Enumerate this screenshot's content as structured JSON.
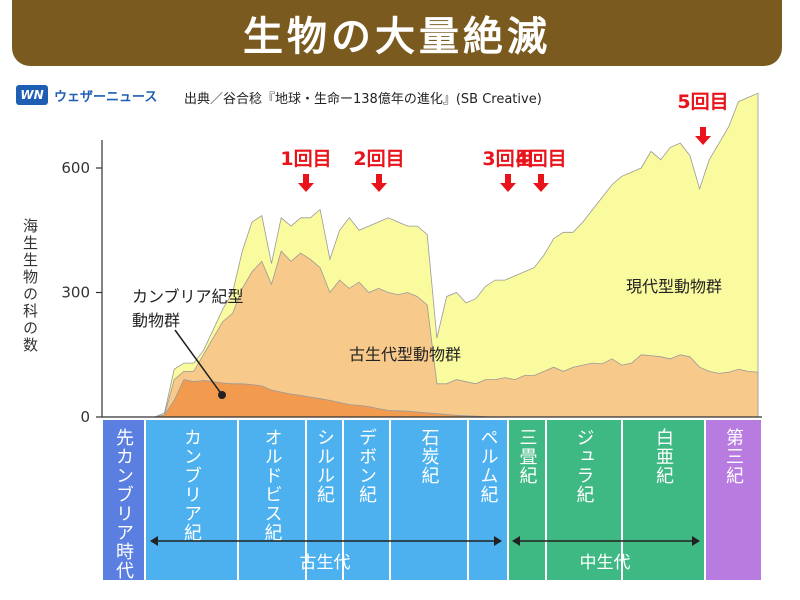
{
  "title": "生物の大量絶滅",
  "brand": {
    "mark": "WN",
    "name": "ウェザーニュース"
  },
  "source": "出典／谷合稔『地球・生命ー138億年の進化』(SB Creative)",
  "chart_data": {
    "type": "area",
    "ylabel": "海生生物の科の数",
    "ylim": [
      0,
      800
    ],
    "yticks": [
      "0",
      "300",
      "600"
    ],
    "ytick_values": [
      0,
      300,
      600
    ],
    "x": [
      0,
      1,
      2,
      3,
      4,
      5,
      6,
      7,
      8,
      9,
      10,
      11,
      12,
      13,
      14,
      15,
      16,
      17,
      18,
      19,
      20,
      21,
      22,
      23,
      24,
      25,
      26,
      27,
      28,
      29,
      30,
      31,
      32,
      33,
      34,
      35,
      36,
      37,
      38,
      39,
      40,
      41,
      42,
      43,
      44,
      45,
      46,
      47,
      48,
      49,
      50,
      51,
      52,
      53,
      54,
      55,
      56,
      57,
      58,
      59,
      60,
      61,
      62,
      63
    ],
    "series": [
      {
        "name": "カンブリア紀型動物群",
        "values": [
          0,
          0,
          5,
          40,
          90,
          85,
          88,
          85,
          82,
          80,
          80,
          78,
          75,
          65,
          60,
          55,
          52,
          48,
          44,
          40,
          35,
          30,
          28,
          25,
          20,
          16,
          15,
          14,
          12,
          10,
          8,
          6,
          4,
          3,
          2,
          1,
          0,
          0,
          0,
          0,
          0,
          0,
          0,
          0,
          0,
          0,
          0,
          0,
          0,
          0,
          0,
          0,
          0,
          0,
          0,
          0,
          0,
          0,
          0,
          0,
          0,
          0,
          0,
          0
        ],
        "color": "#f29b4f"
      },
      {
        "name": "古生代型動物群",
        "values": [
          0,
          0,
          5,
          90,
          110,
          110,
          150,
          190,
          230,
          250,
          310,
          350,
          375,
          320,
          400,
          375,
          395,
          380,
          360,
          300,
          330,
          310,
          325,
          300,
          310,
          300,
          295,
          300,
          290,
          270,
          80,
          80,
          90,
          85,
          80,
          90,
          90,
          95,
          90,
          100,
          100,
          110,
          120,
          110,
          120,
          125,
          130,
          128,
          140,
          125,
          130,
          150,
          148,
          145,
          140,
          150,
          145,
          120,
          110,
          105,
          108,
          115,
          110,
          108
        ],
        "color": "#f7c98a"
      },
      {
        "name": "現代型動物群",
        "values": [
          0,
          0,
          10,
          115,
          130,
          130,
          160,
          210,
          260,
          300,
          400,
          470,
          485,
          370,
          480,
          460,
          480,
          480,
          500,
          380,
          450,
          480,
          450,
          460,
          470,
          480,
          470,
          460,
          460,
          440,
          190,
          290,
          300,
          275,
          285,
          315,
          330,
          330,
          340,
          350,
          360,
          390,
          430,
          445,
          445,
          470,
          500,
          530,
          560,
          580,
          590,
          600,
          640,
          620,
          650,
          660,
          630,
          550,
          620,
          660,
          700,
          760,
          770,
          780
        ],
        "color": "#fafa9e"
      }
    ],
    "boundary_line_values": [
      0,
      0,
      10,
      115,
      130,
      130,
      160,
      210,
      260,
      300,
      400,
      470,
      485,
      370,
      480,
      460,
      480,
      480,
      500,
      380,
      450,
      480,
      450,
      460,
      470,
      480,
      470,
      460,
      460,
      440,
      190,
      290,
      300,
      275,
      285,
      315,
      330,
      330,
      340,
      350,
      360,
      390,
      430,
      445,
      445,
      470,
      500,
      530,
      560,
      580,
      590,
      600,
      640,
      620,
      650,
      660,
      630,
      550,
      620,
      660,
      700,
      760,
      770,
      780
    ],
    "extinctions": [
      {
        "label": "1回目",
        "color": "#e8131b"
      },
      {
        "label": "2回目",
        "color": "#e8131b"
      },
      {
        "label": "3回目",
        "color": "#e8131b"
      },
      {
        "label": "4回目",
        "color": "#e8131b"
      },
      {
        "label": "5回目",
        "color": "#e8131b"
      }
    ],
    "area_labels": {
      "cambrian": [
        "カンブリア紀型",
        "動物群"
      ],
      "paleozoic": "古生代型動物群",
      "modern": "現代型動物群"
    },
    "periods": [
      {
        "name": "先カンブリア時代",
        "color": "#5b7fe0"
      },
      {
        "name": "カンブリア紀",
        "color": "#4db1ef"
      },
      {
        "name": "オルドビス紀",
        "color": "#4db1ef"
      },
      {
        "name": "シルル紀",
        "color": "#4db1ef"
      },
      {
        "name": "デボン紀",
        "color": "#4db1ef"
      },
      {
        "name": "石炭紀",
        "color": "#4db1ef"
      },
      {
        "name": "ペルム紀",
        "color": "#4db1ef"
      },
      {
        "name": "三畳紀",
        "color": "#3fb983"
      },
      {
        "name": "ジュラ紀",
        "color": "#3fb983"
      },
      {
        "name": "白亜紀",
        "color": "#3fb983"
      },
      {
        "name": "第三紀",
        "color": "#b87be0"
      }
    ],
    "eras": [
      {
        "name": "古生代"
      },
      {
        "name": "中生代"
      }
    ]
  }
}
